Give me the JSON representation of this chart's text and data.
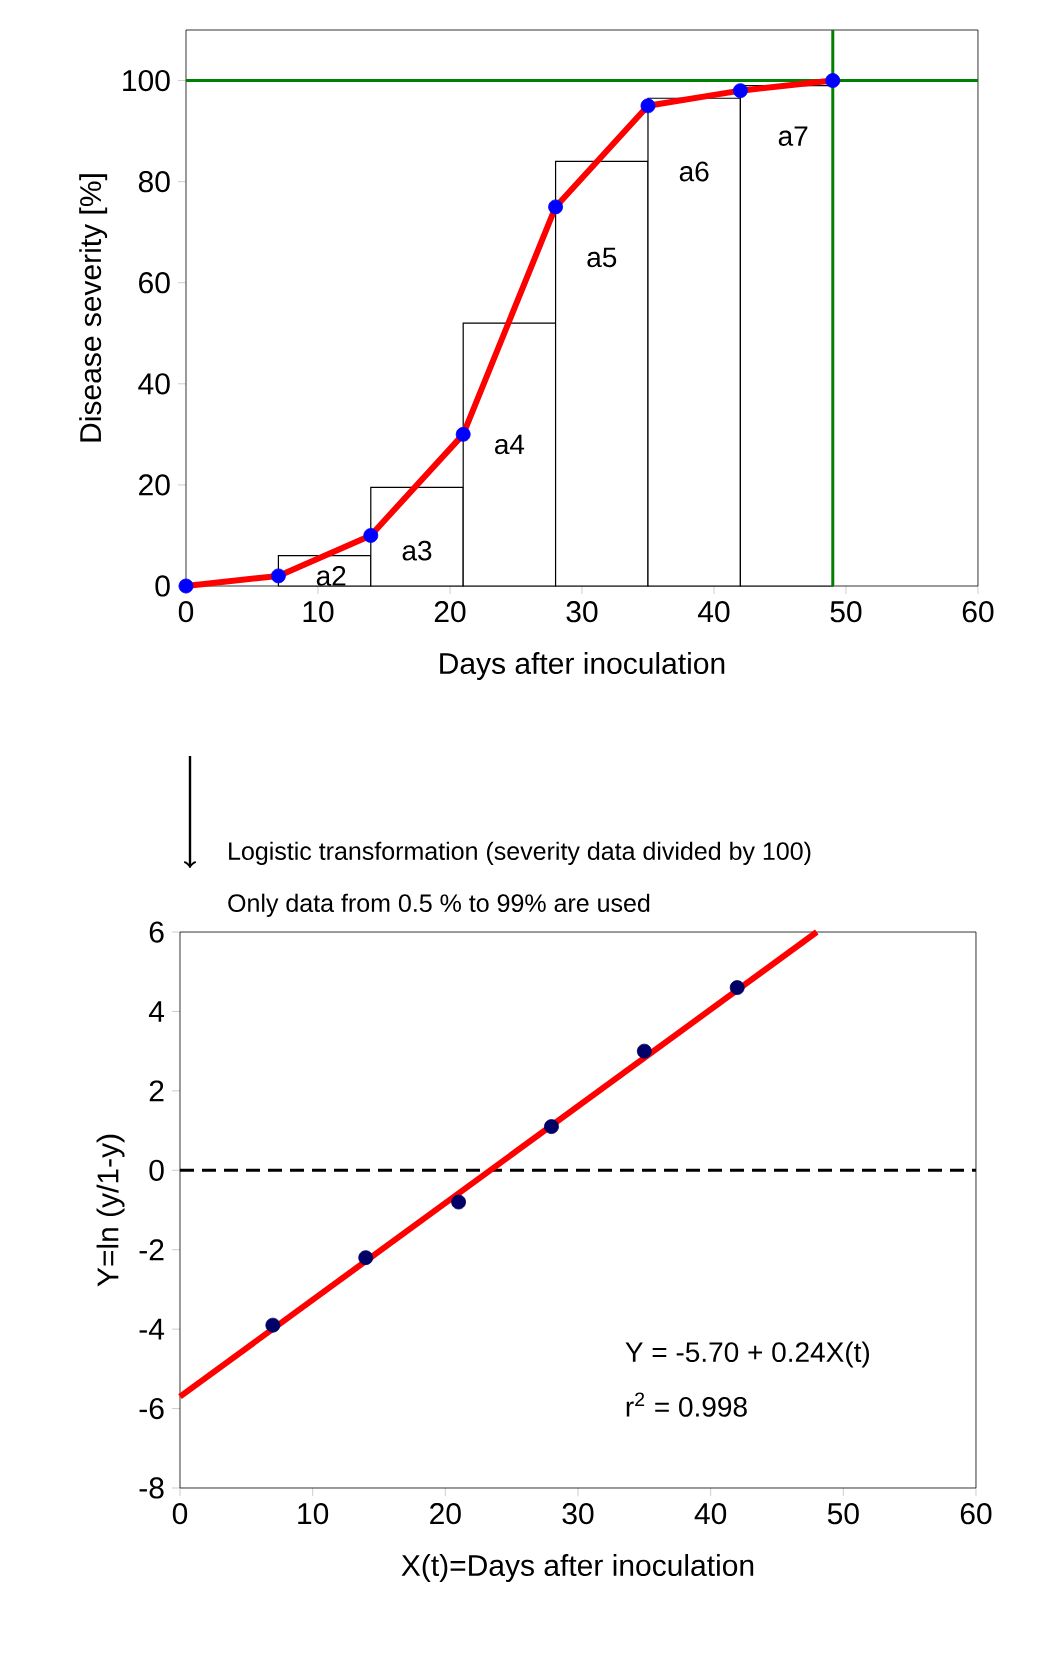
{
  "chart_data": [
    {
      "type": "line",
      "xlabel": "Days after inoculation",
      "ylabel": "Disease severity [%]",
      "xlim": [
        0,
        60
      ],
      "xticks": [
        0,
        10,
        20,
        30,
        40,
        50,
        60
      ],
      "ylim": [
        0,
        110
      ],
      "yticks": [
        0,
        20,
        40,
        60,
        80,
        100
      ],
      "series": [
        {
          "type": "histogram",
          "bins": [
            7,
            14,
            21,
            28,
            35,
            42,
            49
          ],
          "values": [
            6,
            19.5,
            52,
            84,
            96.5,
            99
          ],
          "color": "#ffffff"
        },
        {
          "x": [
            0,
            7,
            14,
            21,
            28,
            35,
            42,
            49
          ],
          "values": [
            0,
            2,
            10,
            30,
            75,
            95,
            98,
            100
          ],
          "color": "#ff0000",
          "marker": "none"
        },
        {
          "type": "scatter",
          "x": [
            0,
            7,
            14,
            21,
            28,
            35,
            42,
            49
          ],
          "values": [
            0,
            2,
            10,
            30,
            75,
            95,
            98,
            100
          ],
          "color": "#0000ff",
          "marker": "circle"
        }
      ],
      "ref_lines": [
        {
          "axis": "y",
          "value": 100,
          "color": "#008000"
        },
        {
          "axis": "x",
          "value": 49,
          "color": "#008000"
        }
      ],
      "annotations": [
        "a2",
        "a3",
        "a4",
        "a5",
        "a6",
        "a7"
      ]
    },
    {
      "type": "scatter",
      "title": "Logistic transformation (severity data divided by 100)",
      "subtitle": "Only data from 0.5 % to 99% are used",
      "xlabel": "X(t)=Days after inoculation",
      "ylabel": "Y=ln (y/1-y)",
      "xlim": [
        0,
        60
      ],
      "xticks": [
        0,
        10,
        20,
        30,
        40,
        50,
        60
      ],
      "ylim": [
        -8,
        6
      ],
      "yticks": [
        -8,
        -6,
        -4,
        -2,
        0,
        2,
        4,
        6
      ],
      "series": [
        {
          "type": "line",
          "x": [
            0,
            48
          ],
          "values": [
            -5.7,
            6
          ],
          "color": "#ff0000",
          "marker": "none"
        },
        {
          "x": [
            7,
            14,
            21,
            28,
            35,
            42
          ],
          "values": [
            -3.9,
            -2.2,
            -0.8,
            1.1,
            3.0,
            4.6
          ],
          "color": "#000066",
          "marker": "circle"
        }
      ],
      "ref_lines": [
        {
          "axis": "y",
          "value": 0,
          "color": "#000000",
          "line_style": "dashed"
        }
      ],
      "annotations": [
        "Y = -5.70 + 0.24X(t)",
        "r$^{2}$ = 0.998"
      ]
    }
  ]
}
